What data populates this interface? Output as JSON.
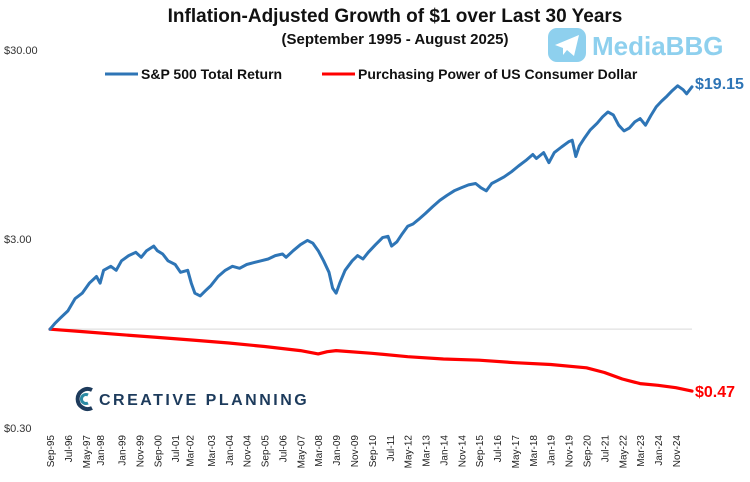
{
  "chart_data": {
    "type": "line",
    "title": "Inflation-Adjusted Growth of $1 over Last 30 Years",
    "subtitle": "(September 1995 - August 2025)",
    "y_scale": "log",
    "ylim": [
      0.3,
      30
    ],
    "y_ticks": [
      {
        "value": 30,
        "label": "$30.00"
      },
      {
        "value": 3,
        "label": "$3.00"
      },
      {
        "value": 0.3,
        "label": "$0.30"
      }
    ],
    "reference_line": 1,
    "x_range": [
      0,
      359
    ],
    "x_ticks": [
      {
        "x": 0,
        "label": "Sep-95"
      },
      {
        "x": 10,
        "label": "Jul-96"
      },
      {
        "x": 20,
        "label": "May-97"
      },
      {
        "x": 28,
        "label": "Jan-98"
      },
      {
        "x": 40,
        "label": "Jan-99"
      },
      {
        "x": 50,
        "label": "Nov-99"
      },
      {
        "x": 60,
        "label": "Sep-00"
      },
      {
        "x": 70,
        "label": "Jul-01"
      },
      {
        "x": 78,
        "label": "Mar-02"
      },
      {
        "x": 90,
        "label": "Mar-03"
      },
      {
        "x": 100,
        "label": "Jan-04"
      },
      {
        "x": 110,
        "label": "Nov-04"
      },
      {
        "x": 120,
        "label": "Sep-05"
      },
      {
        "x": 130,
        "label": "Jul-06"
      },
      {
        "x": 140,
        "label": "May-07"
      },
      {
        "x": 150,
        "label": "Mar-08"
      },
      {
        "x": 160,
        "label": "Jan-09"
      },
      {
        "x": 170,
        "label": "Nov-09"
      },
      {
        "x": 180,
        "label": "Sep-10"
      },
      {
        "x": 190,
        "label": "Jul-11"
      },
      {
        "x": 200,
        "label": "May-12"
      },
      {
        "x": 210,
        "label": "Mar-13"
      },
      {
        "x": 220,
        "label": "Jan-14"
      },
      {
        "x": 230,
        "label": "Nov-14"
      },
      {
        "x": 240,
        "label": "Sep-15"
      },
      {
        "x": 250,
        "label": "Jul-16"
      },
      {
        "x": 260,
        "label": "May-17"
      },
      {
        "x": 270,
        "label": "Mar-18"
      },
      {
        "x": 280,
        "label": "Jan-19"
      },
      {
        "x": 290,
        "label": "Nov-19"
      },
      {
        "x": 300,
        "label": "Sep-20"
      },
      {
        "x": 310,
        "label": "Jul-21"
      },
      {
        "x": 320,
        "label": "May-22"
      },
      {
        "x": 330,
        "label": "Mar-23"
      },
      {
        "x": 340,
        "label": "Jan-24"
      },
      {
        "x": 350,
        "label": "Nov-24"
      }
    ],
    "series": [
      {
        "name": "S&P 500 Total Return",
        "color": "#2e75b6",
        "end_label": "$19.15",
        "points": [
          [
            0,
            1.0
          ],
          [
            3,
            1.08
          ],
          [
            6,
            1.15
          ],
          [
            10,
            1.25
          ],
          [
            14,
            1.45
          ],
          [
            18,
            1.55
          ],
          [
            22,
            1.75
          ],
          [
            26,
            1.9
          ],
          [
            28,
            1.75
          ],
          [
            30,
            2.05
          ],
          [
            34,
            2.15
          ],
          [
            37,
            2.05
          ],
          [
            40,
            2.3
          ],
          [
            44,
            2.45
          ],
          [
            48,
            2.55
          ],
          [
            51,
            2.4
          ],
          [
            54,
            2.6
          ],
          [
            58,
            2.75
          ],
          [
            60,
            2.6
          ],
          [
            63,
            2.5
          ],
          [
            66,
            2.3
          ],
          [
            70,
            2.2
          ],
          [
            73,
            2.0
          ],
          [
            77,
            2.05
          ],
          [
            79,
            1.75
          ],
          [
            81,
            1.55
          ],
          [
            84,
            1.5
          ],
          [
            87,
            1.6
          ],
          [
            90,
            1.7
          ],
          [
            94,
            1.9
          ],
          [
            98,
            2.05
          ],
          [
            102,
            2.15
          ],
          [
            106,
            2.1
          ],
          [
            110,
            2.2
          ],
          [
            114,
            2.25
          ],
          [
            118,
            2.3
          ],
          [
            122,
            2.35
          ],
          [
            126,
            2.45
          ],
          [
            130,
            2.5
          ],
          [
            132,
            2.4
          ],
          [
            136,
            2.6
          ],
          [
            140,
            2.8
          ],
          [
            144,
            2.95
          ],
          [
            147,
            2.85
          ],
          [
            150,
            2.6
          ],
          [
            153,
            2.3
          ],
          [
            156,
            2.0
          ],
          [
            158,
            1.65
          ],
          [
            160,
            1.55
          ],
          [
            162,
            1.75
          ],
          [
            165,
            2.05
          ],
          [
            169,
            2.3
          ],
          [
            172,
            2.45
          ],
          [
            175,
            2.35
          ],
          [
            178,
            2.55
          ],
          [
            182,
            2.8
          ],
          [
            186,
            3.05
          ],
          [
            189,
            3.1
          ],
          [
            191,
            2.75
          ],
          [
            194,
            2.9
          ],
          [
            197,
            3.2
          ],
          [
            200,
            3.5
          ],
          [
            203,
            3.6
          ],
          [
            206,
            3.8
          ],
          [
            210,
            4.1
          ],
          [
            214,
            4.45
          ],
          [
            218,
            4.8
          ],
          [
            222,
            5.1
          ],
          [
            226,
            5.4
          ],
          [
            230,
            5.6
          ],
          [
            234,
            5.8
          ],
          [
            238,
            5.9
          ],
          [
            241,
            5.6
          ],
          [
            244,
            5.4
          ],
          [
            247,
            5.9
          ],
          [
            250,
            6.1
          ],
          [
            254,
            6.4
          ],
          [
            258,
            6.8
          ],
          [
            262,
            7.3
          ],
          [
            266,
            7.8
          ],
          [
            270,
            8.4
          ],
          [
            272,
            8.0
          ],
          [
            276,
            8.6
          ],
          [
            279,
            7.6
          ],
          [
            282,
            8.6
          ],
          [
            286,
            9.2
          ],
          [
            290,
            9.8
          ],
          [
            292,
            10.0
          ],
          [
            294,
            8.2
          ],
          [
            296,
            9.3
          ],
          [
            299,
            10.3
          ],
          [
            302,
            11.3
          ],
          [
            306,
            12.3
          ],
          [
            309,
            13.3
          ],
          [
            312,
            14.1
          ],
          [
            315,
            13.6
          ],
          [
            318,
            12.0
          ],
          [
            321,
            11.2
          ],
          [
            324,
            11.6
          ],
          [
            327,
            12.5
          ],
          [
            330,
            13.0
          ],
          [
            333,
            12.0
          ],
          [
            336,
            13.5
          ],
          [
            339,
            15.0
          ],
          [
            342,
            16.1
          ],
          [
            345,
            17.1
          ],
          [
            348,
            18.3
          ],
          [
            351,
            19.4
          ],
          [
            354,
            18.5
          ],
          [
            356,
            17.6
          ],
          [
            359,
            19.15
          ]
        ]
      },
      {
        "name": "Purchasing Power of US Consumer Dollar",
        "color": "#ff0000",
        "end_label": "$0.47",
        "points": [
          [
            0,
            1.0
          ],
          [
            20,
            0.967
          ],
          [
            40,
            0.935
          ],
          [
            60,
            0.905
          ],
          [
            80,
            0.875
          ],
          [
            100,
            0.845
          ],
          [
            120,
            0.81
          ],
          [
            140,
            0.77
          ],
          [
            150,
            0.74
          ],
          [
            155,
            0.76
          ],
          [
            160,
            0.77
          ],
          [
            180,
            0.745
          ],
          [
            200,
            0.715
          ],
          [
            220,
            0.695
          ],
          [
            240,
            0.685
          ],
          [
            260,
            0.665
          ],
          [
            280,
            0.65
          ],
          [
            300,
            0.625
          ],
          [
            310,
            0.59
          ],
          [
            320,
            0.545
          ],
          [
            330,
            0.515
          ],
          [
            340,
            0.505
          ],
          [
            350,
            0.49
          ],
          [
            359,
            0.47
          ]
        ]
      }
    ]
  },
  "watermark": {
    "text": "MediaBBG"
  },
  "brand": {
    "text": "CREATIVE PLANNING"
  },
  "colors": {
    "spx": "#2e75b6",
    "cpi": "#ff0000",
    "watermark": "#8ed0ee",
    "brand_navy": "#1d3b5c",
    "brand_teal": "#2b8aa3"
  }
}
